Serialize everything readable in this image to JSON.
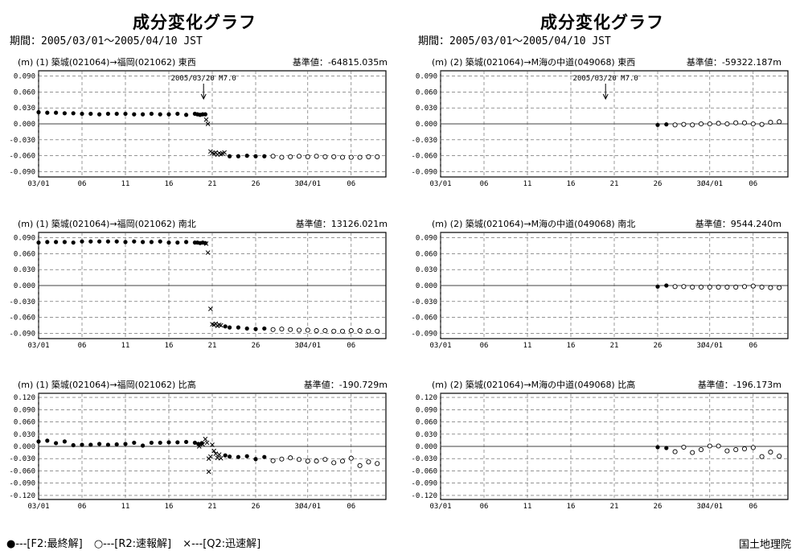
{
  "titles": [
    "成分変化グラフ",
    "成分変化グラフ"
  ],
  "period": "期間：2005/03/01～2005/04/10 JST",
  "legend": {
    "final": "●---[F2:最終解]",
    "rapid": "○---[R2:速報解]",
    "quick": "×---[Q2:迅速解]"
  },
  "org": "国土地理院",
  "chart_data": [
    {
      "type": "scatter",
      "header": "(m) (1) 築城(021064)→福岡(021062)  東西",
      "reference": "基準値：-64815.035m",
      "event_label": "2005/03/20 M7.0",
      "event_x": 20,
      "ylim": [
        -0.1,
        0.1
      ],
      "yticks": [
        "0.090",
        "0.060",
        "0.030",
        "0.000",
        "-0.030",
        "-0.060",
        "-0.090"
      ],
      "xticks": [
        "03/01",
        "06",
        "11",
        "16",
        "21",
        "26",
        "3Ø4/01",
        "06"
      ],
      "series": [
        {
          "symbol": "final",
          "x": [
            1,
            2,
            3,
            4,
            5,
            6,
            7,
            8,
            9,
            10,
            11,
            12,
            13,
            14,
            15,
            16,
            17,
            18,
            19,
            19.3,
            19.6,
            19.9,
            20.2
          ],
          "y": [
            0.022,
            0.021,
            0.021,
            0.02,
            0.02,
            0.019,
            0.019,
            0.018,
            0.019,
            0.019,
            0.019,
            0.018,
            0.018,
            0.019,
            0.018,
            0.018,
            0.019,
            0.017,
            0.019,
            0.018,
            0.017,
            0.018,
            0.018
          ]
        },
        {
          "symbol": "quick",
          "x": [
            20.3,
            20.5,
            20.8,
            21,
            21.2,
            21.4,
            21.6,
            21.8,
            22,
            22.2,
            22.4
          ],
          "y": [
            0.008,
            0.0,
            -0.052,
            -0.055,
            -0.056,
            -0.054,
            -0.058,
            -0.055,
            -0.057,
            -0.056,
            -0.054
          ]
        },
        {
          "symbol": "final",
          "x": [
            23,
            24,
            25,
            26,
            27
          ],
          "y": [
            -0.061,
            -0.061,
            -0.06,
            -0.061,
            -0.061
          ]
        },
        {
          "symbol": "rapid",
          "x": [
            28,
            29,
            30,
            31,
            32,
            33,
            34,
            35,
            36,
            37,
            38,
            39,
            40
          ],
          "y": [
            -0.061,
            -0.063,
            -0.062,
            -0.061,
            -0.062,
            -0.061,
            -0.062,
            -0.062,
            -0.063,
            -0.063,
            -0.063,
            -0.062,
            -0.062
          ]
        }
      ]
    },
    {
      "type": "scatter",
      "header": "(m) (2) 築城(021064)→M海の中道(049068)  東西",
      "reference": "基準値：-59322.187m",
      "event_label": "2005/03/20 M7.0",
      "event_x": 20,
      "ylim": [
        -0.1,
        0.1
      ],
      "yticks": [
        "0.090",
        "0.060",
        "0.030",
        "0.000",
        "-0.030",
        "-0.060",
        "-0.090"
      ],
      "xticks": [
        "03/01",
        "06",
        "11",
        "16",
        "21",
        "26",
        "3Ø4/01",
        "06"
      ],
      "series": [
        {
          "symbol": "final",
          "x": [
            26,
            27
          ],
          "y": [
            -0.002,
            -0.001
          ]
        },
        {
          "symbol": "rapid",
          "x": [
            28,
            29,
            30,
            31,
            32,
            33,
            34,
            35,
            36,
            37,
            38,
            39,
            40
          ],
          "y": [
            -0.002,
            -0.001,
            -0.002,
            0.0,
            0.0,
            0.001,
            0.0,
            0.002,
            0.002,
            0.0,
            -0.001,
            0.003,
            0.004
          ]
        }
      ]
    },
    {
      "type": "scatter",
      "header": "(m) (1) 築城(021064)→福岡(021062)  南北",
      "reference": "基準値：13126.021m",
      "ylim": [
        -0.1,
        0.1
      ],
      "yticks": [
        "0.090",
        "0.060",
        "0.030",
        "0.000",
        "-0.030",
        "-0.060",
        "-0.090"
      ],
      "xticks": [
        "03/01",
        "06",
        "11",
        "16",
        "21",
        "26",
        "3Ø4/01",
        "06"
      ],
      "series": [
        {
          "symbol": "final",
          "x": [
            1,
            2,
            3,
            4,
            5,
            6,
            7,
            8,
            9,
            10,
            11,
            12,
            13,
            14,
            15,
            16,
            17,
            18,
            19,
            19.3,
            19.6,
            19.9,
            20.2
          ],
          "y": [
            0.081,
            0.082,
            0.082,
            0.082,
            0.081,
            0.083,
            0.083,
            0.083,
            0.083,
            0.083,
            0.082,
            0.083,
            0.082,
            0.082,
            0.083,
            0.081,
            0.081,
            0.082,
            0.081,
            0.081,
            0.08,
            0.081,
            0.08
          ]
        },
        {
          "symbol": "quick",
          "x": [
            20.3,
            20.5,
            20.8,
            21,
            21.2,
            21.4,
            21.6,
            21.8,
            22
          ],
          "y": [
            0.079,
            0.062,
            -0.044,
            -0.073,
            -0.074,
            -0.072,
            -0.076,
            -0.074,
            -0.075
          ]
        },
        {
          "symbol": "final",
          "x": [
            22.5,
            23,
            24,
            25,
            26,
            27
          ],
          "y": [
            -0.077,
            -0.079,
            -0.079,
            -0.081,
            -0.082,
            -0.081
          ]
        },
        {
          "symbol": "rapid",
          "x": [
            28,
            29,
            30,
            31,
            32,
            33,
            34,
            35,
            36,
            37,
            38,
            39,
            40
          ],
          "y": [
            -0.083,
            -0.082,
            -0.083,
            -0.084,
            -0.084,
            -0.085,
            -0.085,
            -0.086,
            -0.086,
            -0.085,
            -0.085,
            -0.086,
            -0.086
          ]
        }
      ]
    },
    {
      "type": "scatter",
      "header": "(m) (2) 築城(021064)→M海の中道(049068)  南北",
      "reference": "基準値：9544.240m",
      "ylim": [
        -0.1,
        0.1
      ],
      "yticks": [
        "0.090",
        "0.060",
        "0.030",
        "0.000",
        "-0.030",
        "-0.060",
        "-0.090"
      ],
      "xticks": [
        "03/01",
        "06",
        "11",
        "16",
        "21",
        "26",
        "3Ø4/01",
        "06"
      ],
      "series": [
        {
          "symbol": "final",
          "x": [
            26,
            27
          ],
          "y": [
            -0.002,
            0.0
          ]
        },
        {
          "symbol": "rapid",
          "x": [
            28,
            29,
            30,
            31,
            32,
            33,
            34,
            35,
            36,
            37,
            38,
            39,
            40
          ],
          "y": [
            -0.002,
            -0.002,
            -0.003,
            -0.003,
            -0.003,
            -0.003,
            -0.003,
            -0.003,
            -0.002,
            -0.001,
            -0.003,
            -0.004,
            -0.004
          ]
        }
      ]
    },
    {
      "type": "scatter",
      "header": "(m) (1) 築城(021064)→福岡(021062)  比高",
      "reference": "基準値：-190.729m",
      "ylim": [
        -0.13,
        0.13
      ],
      "yticks": [
        "0.120",
        "0.090",
        "0.060",
        "0.030",
        "0.000",
        "-0.030",
        "-0.060",
        "-0.090",
        "-0.120"
      ],
      "xticks": [
        "03/01",
        "06",
        "11",
        "16",
        "21",
        "26",
        "3Ø4/01",
        "06"
      ],
      "series": [
        {
          "symbol": "final",
          "x": [
            1,
            2,
            3,
            4,
            5,
            6,
            7,
            8,
            9,
            10,
            11,
            12,
            13,
            14,
            15,
            16,
            17,
            18,
            19,
            19.4,
            19.8
          ],
          "y": [
            0.012,
            0.014,
            0.008,
            0.012,
            0.003,
            0.004,
            0.004,
            0.006,
            0.004,
            0.005,
            0.006,
            0.009,
            0.002,
            0.009,
            0.009,
            0.01,
            0.01,
            0.011,
            0.009,
            0.006,
            0.008
          ]
        },
        {
          "symbol": "quick",
          "x": [
            19.5,
            19.9,
            20.2,
            20.4,
            20.6,
            20.8,
            21,
            21.2,
            21.4,
            21.6,
            21.8,
            22,
            20.6
          ],
          "y": [
            0.0,
            0.005,
            0.018,
            0.009,
            -0.03,
            -0.025,
            0.004,
            -0.011,
            -0.018,
            -0.028,
            -0.02,
            -0.029,
            -0.062
          ]
        },
        {
          "symbol": "final",
          "x": [
            22.5,
            23,
            24,
            25,
            26,
            27
          ],
          "y": [
            -0.022,
            -0.025,
            -0.026,
            -0.024,
            -0.031,
            -0.026
          ]
        },
        {
          "symbol": "rapid",
          "x": [
            28,
            29,
            30,
            31,
            32,
            33,
            34,
            35,
            36,
            37,
            38,
            39,
            40
          ],
          "y": [
            -0.035,
            -0.031,
            -0.028,
            -0.032,
            -0.036,
            -0.036,
            -0.032,
            -0.04,
            -0.036,
            -0.029,
            -0.047,
            -0.038,
            -0.042
          ]
        }
      ]
    },
    {
      "type": "scatter",
      "header": "(m) (2) 築城(021064)→M海の中道(049068)  比高",
      "reference": "基準値：-196.173m",
      "ylim": [
        -0.13,
        0.13
      ],
      "yticks": [
        "0.120",
        "0.090",
        "0.060",
        "0.030",
        "0.000",
        "-0.030",
        "-0.060",
        "-0.090",
        "-0.120"
      ],
      "xticks": [
        "03/01",
        "06",
        "11",
        "16",
        "21",
        "26",
        "3Ø4/01",
        "06"
      ],
      "series": [
        {
          "symbol": "final",
          "x": [
            26,
            27
          ],
          "y": [
            -0.002,
            -0.004
          ]
        },
        {
          "symbol": "rapid",
          "x": [
            28,
            29,
            30,
            31,
            32,
            33,
            34,
            35,
            36,
            37,
            38,
            39,
            40
          ],
          "y": [
            -0.013,
            -0.002,
            -0.015,
            -0.008,
            0.001,
            0.001,
            -0.011,
            -0.008,
            -0.006,
            -0.003,
            -0.025,
            -0.014,
            -0.024
          ]
        }
      ]
    }
  ]
}
